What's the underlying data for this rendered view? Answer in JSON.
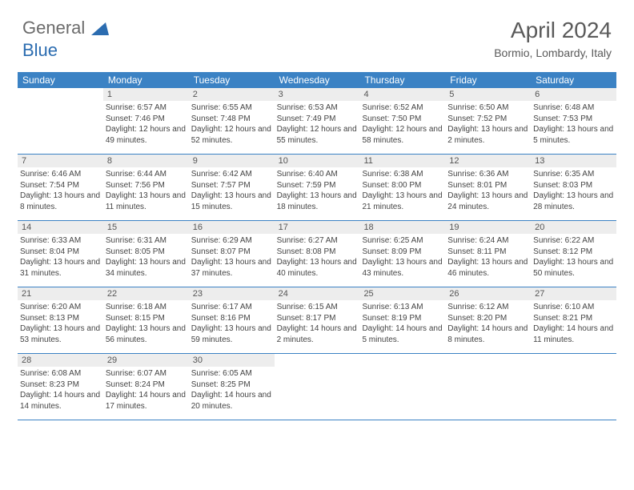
{
  "logo": {
    "part1": "General",
    "part2": "Blue"
  },
  "title": "April 2024",
  "subtitle": "Bormio, Lombardy, Italy",
  "colors": {
    "header_bg": "#3b82c4",
    "header_text": "#ffffff",
    "daynum_bg": "#ededed",
    "text": "#444444",
    "logo_gray": "#6b6b6b",
    "logo_blue": "#2b6cb0",
    "title_color": "#5a5a5a"
  },
  "day_headers": [
    "Sunday",
    "Monday",
    "Tuesday",
    "Wednesday",
    "Thursday",
    "Friday",
    "Saturday"
  ],
  "weeks": [
    [
      {
        "n": "",
        "sr": "",
        "ss": "",
        "dl": ""
      },
      {
        "n": "1",
        "sr": "Sunrise: 6:57 AM",
        "ss": "Sunset: 7:46 PM",
        "dl": "Daylight: 12 hours and 49 minutes."
      },
      {
        "n": "2",
        "sr": "Sunrise: 6:55 AM",
        "ss": "Sunset: 7:48 PM",
        "dl": "Daylight: 12 hours and 52 minutes."
      },
      {
        "n": "3",
        "sr": "Sunrise: 6:53 AM",
        "ss": "Sunset: 7:49 PM",
        "dl": "Daylight: 12 hours and 55 minutes."
      },
      {
        "n": "4",
        "sr": "Sunrise: 6:52 AM",
        "ss": "Sunset: 7:50 PM",
        "dl": "Daylight: 12 hours and 58 minutes."
      },
      {
        "n": "5",
        "sr": "Sunrise: 6:50 AM",
        "ss": "Sunset: 7:52 PM",
        "dl": "Daylight: 13 hours and 2 minutes."
      },
      {
        "n": "6",
        "sr": "Sunrise: 6:48 AM",
        "ss": "Sunset: 7:53 PM",
        "dl": "Daylight: 13 hours and 5 minutes."
      }
    ],
    [
      {
        "n": "7",
        "sr": "Sunrise: 6:46 AM",
        "ss": "Sunset: 7:54 PM",
        "dl": "Daylight: 13 hours and 8 minutes."
      },
      {
        "n": "8",
        "sr": "Sunrise: 6:44 AM",
        "ss": "Sunset: 7:56 PM",
        "dl": "Daylight: 13 hours and 11 minutes."
      },
      {
        "n": "9",
        "sr": "Sunrise: 6:42 AM",
        "ss": "Sunset: 7:57 PM",
        "dl": "Daylight: 13 hours and 15 minutes."
      },
      {
        "n": "10",
        "sr": "Sunrise: 6:40 AM",
        "ss": "Sunset: 7:59 PM",
        "dl": "Daylight: 13 hours and 18 minutes."
      },
      {
        "n": "11",
        "sr": "Sunrise: 6:38 AM",
        "ss": "Sunset: 8:00 PM",
        "dl": "Daylight: 13 hours and 21 minutes."
      },
      {
        "n": "12",
        "sr": "Sunrise: 6:36 AM",
        "ss": "Sunset: 8:01 PM",
        "dl": "Daylight: 13 hours and 24 minutes."
      },
      {
        "n": "13",
        "sr": "Sunrise: 6:35 AM",
        "ss": "Sunset: 8:03 PM",
        "dl": "Daylight: 13 hours and 28 minutes."
      }
    ],
    [
      {
        "n": "14",
        "sr": "Sunrise: 6:33 AM",
        "ss": "Sunset: 8:04 PM",
        "dl": "Daylight: 13 hours and 31 minutes."
      },
      {
        "n": "15",
        "sr": "Sunrise: 6:31 AM",
        "ss": "Sunset: 8:05 PM",
        "dl": "Daylight: 13 hours and 34 minutes."
      },
      {
        "n": "16",
        "sr": "Sunrise: 6:29 AM",
        "ss": "Sunset: 8:07 PM",
        "dl": "Daylight: 13 hours and 37 minutes."
      },
      {
        "n": "17",
        "sr": "Sunrise: 6:27 AM",
        "ss": "Sunset: 8:08 PM",
        "dl": "Daylight: 13 hours and 40 minutes."
      },
      {
        "n": "18",
        "sr": "Sunrise: 6:25 AM",
        "ss": "Sunset: 8:09 PM",
        "dl": "Daylight: 13 hours and 43 minutes."
      },
      {
        "n": "19",
        "sr": "Sunrise: 6:24 AM",
        "ss": "Sunset: 8:11 PM",
        "dl": "Daylight: 13 hours and 46 minutes."
      },
      {
        "n": "20",
        "sr": "Sunrise: 6:22 AM",
        "ss": "Sunset: 8:12 PM",
        "dl": "Daylight: 13 hours and 50 minutes."
      }
    ],
    [
      {
        "n": "21",
        "sr": "Sunrise: 6:20 AM",
        "ss": "Sunset: 8:13 PM",
        "dl": "Daylight: 13 hours and 53 minutes."
      },
      {
        "n": "22",
        "sr": "Sunrise: 6:18 AM",
        "ss": "Sunset: 8:15 PM",
        "dl": "Daylight: 13 hours and 56 minutes."
      },
      {
        "n": "23",
        "sr": "Sunrise: 6:17 AM",
        "ss": "Sunset: 8:16 PM",
        "dl": "Daylight: 13 hours and 59 minutes."
      },
      {
        "n": "24",
        "sr": "Sunrise: 6:15 AM",
        "ss": "Sunset: 8:17 PM",
        "dl": "Daylight: 14 hours and 2 minutes."
      },
      {
        "n": "25",
        "sr": "Sunrise: 6:13 AM",
        "ss": "Sunset: 8:19 PM",
        "dl": "Daylight: 14 hours and 5 minutes."
      },
      {
        "n": "26",
        "sr": "Sunrise: 6:12 AM",
        "ss": "Sunset: 8:20 PM",
        "dl": "Daylight: 14 hours and 8 minutes."
      },
      {
        "n": "27",
        "sr": "Sunrise: 6:10 AM",
        "ss": "Sunset: 8:21 PM",
        "dl": "Daylight: 14 hours and 11 minutes."
      }
    ],
    [
      {
        "n": "28",
        "sr": "Sunrise: 6:08 AM",
        "ss": "Sunset: 8:23 PM",
        "dl": "Daylight: 14 hours and 14 minutes."
      },
      {
        "n": "29",
        "sr": "Sunrise: 6:07 AM",
        "ss": "Sunset: 8:24 PM",
        "dl": "Daylight: 14 hours and 17 minutes."
      },
      {
        "n": "30",
        "sr": "Sunrise: 6:05 AM",
        "ss": "Sunset: 8:25 PM",
        "dl": "Daylight: 14 hours and 20 minutes."
      },
      {
        "n": "",
        "sr": "",
        "ss": "",
        "dl": ""
      },
      {
        "n": "",
        "sr": "",
        "ss": "",
        "dl": ""
      },
      {
        "n": "",
        "sr": "",
        "ss": "",
        "dl": ""
      },
      {
        "n": "",
        "sr": "",
        "ss": "",
        "dl": ""
      }
    ]
  ]
}
